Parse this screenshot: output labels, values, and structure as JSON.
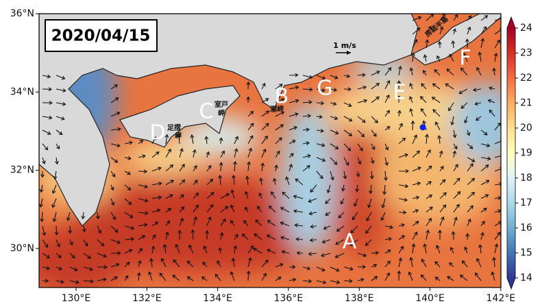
{
  "map": {
    "date": "2020/04/15",
    "xticks": [
      "130°E",
      "132°E",
      "134°E",
      "136°E",
      "138°E",
      "140°E",
      "142°E"
    ],
    "yticks": [
      "30°N",
      "32°N",
      "34°N",
      "36°N"
    ],
    "labels": [
      "A",
      "B",
      "C",
      "D",
      "E",
      "F",
      "G"
    ],
    "places": [
      "室戸",
      "岬",
      "足摺",
      "岬",
      "潮岬",
      "房総半島"
    ],
    "scale_label": "1 m/s",
    "colorbar": {
      "lim": [
        14,
        24
      ],
      "ticks": [
        14,
        15,
        16,
        17,
        18,
        19,
        20,
        21,
        22,
        23,
        24
      ]
    }
  }
}
